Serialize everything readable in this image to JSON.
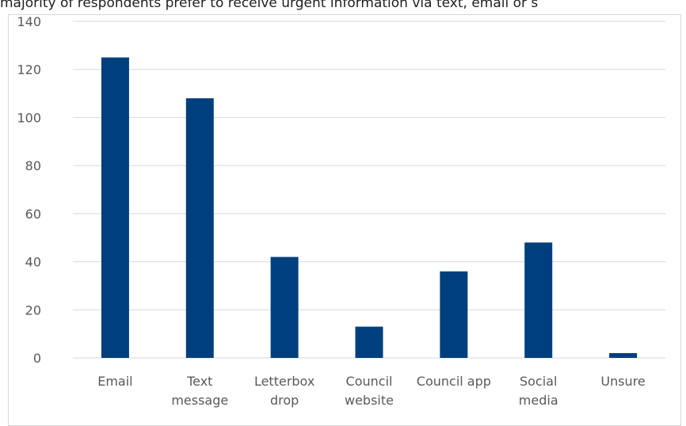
{
  "headline": "majority of respondents prefer to receive urgent information via text, email or s",
  "colors": {
    "bar": "#003f7d",
    "gridline": "#d9d9d9",
    "axis_text": "#595959"
  },
  "chart_data": {
    "type": "bar",
    "title": "",
    "xlabel": "",
    "ylabel": "",
    "categories": [
      [
        "Email"
      ],
      [
        "Text",
        "message"
      ],
      [
        "Letterbox",
        "drop"
      ],
      [
        "Council",
        "website"
      ],
      [
        "Council app"
      ],
      [
        "Social",
        "media"
      ],
      [
        "Unsure"
      ]
    ],
    "values": [
      125,
      108,
      42,
      13,
      36,
      48,
      2
    ],
    "ylim": [
      0,
      140
    ],
    "yticks": [
      0,
      20,
      40,
      60,
      80,
      100,
      120,
      140
    ],
    "grid": true,
    "legend": "none"
  }
}
